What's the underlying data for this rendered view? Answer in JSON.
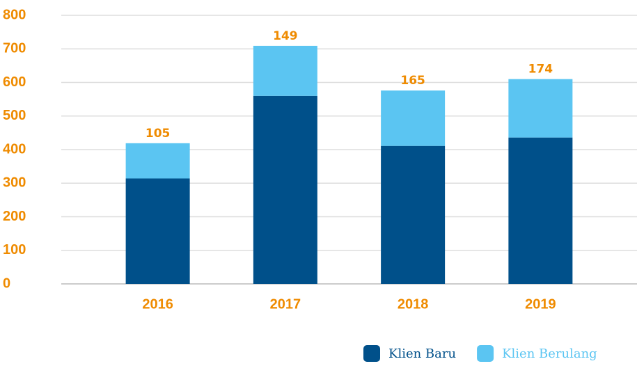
{
  "chart_data": {
    "type": "stacked_bar",
    "categories": [
      "2016",
      "2017",
      "2018",
      "2019"
    ],
    "series": [
      {
        "name": "Klien Baru",
        "color": "#00508a",
        "values": [
          314,
          560,
          411,
          436
        ]
      },
      {
        "name": "Klien Berulang",
        "color": "#5bc5f2",
        "values": [
          105,
          149,
          165,
          174
        ]
      }
    ],
    "ylim": [
      0,
      800
    ],
    "yticks": [
      0,
      100,
      200,
      300,
      400,
      500,
      600,
      700,
      800
    ],
    "grid": true,
    "legend": "bottom-right"
  }
}
